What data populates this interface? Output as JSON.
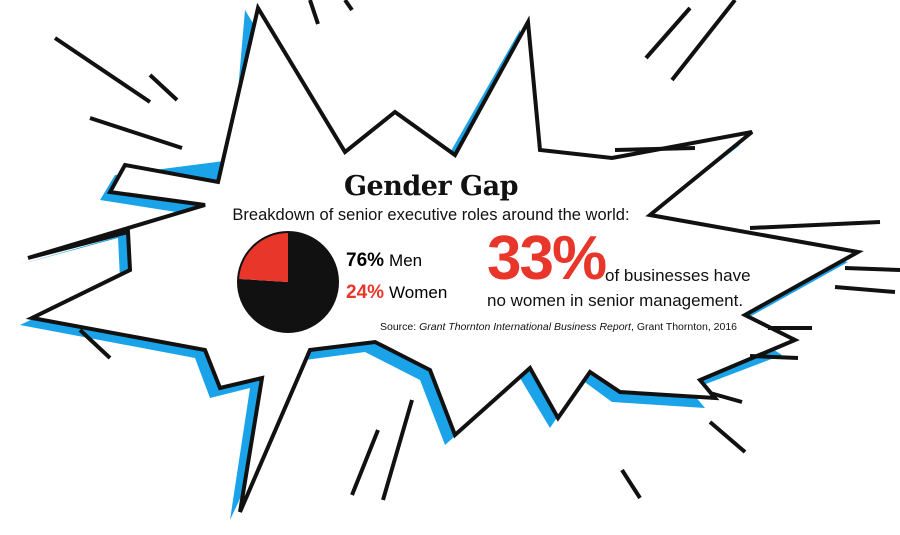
{
  "colors": {
    "accent_red": "#e8362a",
    "ink": "#111111",
    "shadow_blue": "#1aa3e8",
    "background": "#ffffff"
  },
  "title": "Gender Gap",
  "subtitle": "Breakdown of senior executive roles around the world:",
  "chart_data": {
    "type": "pie",
    "title": "Gender Gap",
    "subtitle": "Breakdown of senior executive roles around the world:",
    "categories": [
      "Men",
      "Women"
    ],
    "values": [
      76,
      24
    ],
    "colors": [
      "#111111",
      "#e8362a"
    ],
    "legend_placement": "right",
    "labels": [
      {
        "value_label": "76%",
        "name": "Men"
      },
      {
        "value_label": "24%",
        "name": "Women"
      }
    ]
  },
  "callout": {
    "value": "33%",
    "text_line1": "of businesses have",
    "text_line2": "no women in senior management."
  },
  "source": {
    "prefix": "Source:",
    "publication": "Grant Thornton International Business Report",
    "suffix": ", Grant Thornton, 2016"
  }
}
